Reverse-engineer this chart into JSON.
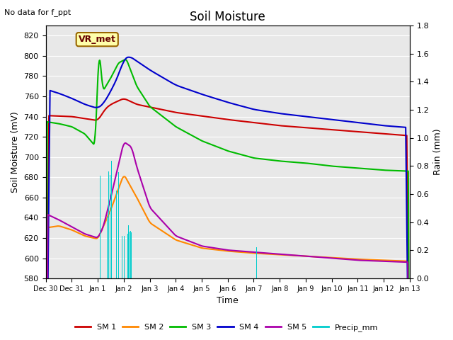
{
  "title": "Soil Moisture",
  "xlabel": "Time",
  "ylabel_left": "Soil Moisture (mV)",
  "ylabel_right": "Rain (mm)",
  "top_left_text": "No data for f_ppt",
  "vr_met_label": "VR_met",
  "ylim_left": [
    580,
    830
  ],
  "ylim_right": [
    0.0,
    1.8
  ],
  "yticks_left": [
    580,
    600,
    620,
    640,
    660,
    680,
    700,
    720,
    740,
    760,
    780,
    800,
    820
  ],
  "yticks_right": [
    0.0,
    0.2,
    0.4,
    0.6,
    0.8,
    1.0,
    1.2,
    1.4,
    1.6,
    1.8
  ],
  "bg_color": "#e8e8e8",
  "colors": {
    "SM1": "#cc0000",
    "SM2": "#ff8800",
    "SM3": "#00bb00",
    "SM4": "#0000cc",
    "SM5": "#aa00aa",
    "Precip": "#00cccc"
  },
  "legend_labels": [
    "SM 1",
    "SM 2",
    "SM 3",
    "SM 4",
    "SM 5",
    "Precip_mm"
  ],
  "xtick_positions": [
    0,
    1,
    2,
    3,
    4,
    5,
    6,
    7,
    8,
    9,
    10,
    11,
    12,
    13,
    14
  ],
  "xtick_labels": [
    "Dec 30",
    "Dec 31",
    "Jan 1",
    "Jan 2",
    "Jan 3",
    "Jan 4",
    "Jan 5",
    "Jan 6",
    "Jan 7",
    "Jan 8",
    "Jan 9",
    "Jan 10",
    "Jan 11",
    "Jan 12",
    "Jan 13"
  ]
}
